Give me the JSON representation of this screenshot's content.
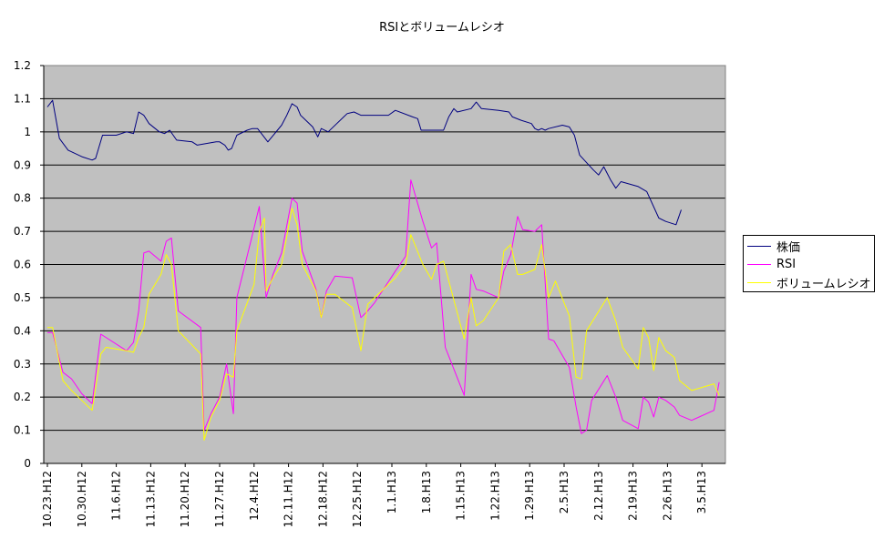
{
  "chart_data": {
    "type": "line",
    "title": "RSIとボリュームレシオ",
    "ylim": [
      0,
      1.2
    ],
    "yticks": [
      "0",
      "0.1",
      "0.2",
      "0.3",
      "0.4",
      "0.5",
      "0.6",
      "0.7",
      "0.8",
      "0.9",
      "1",
      "1.1",
      "1.2"
    ],
    "xticks": [
      "10.23.H12",
      "10.30.H12",
      "11.6.H12",
      "11.13.H12",
      "11.20.H12",
      "11.27.H12",
      "12.4.H12",
      "12.11.H12",
      "12.18.H12",
      "12.25.H12",
      "1.1.H13",
      "1.8.H13",
      "1.15.H13",
      "1.22.H13",
      "1.29.H13",
      "2.5.H13",
      "2.12.H13",
      "2.19.H13",
      "2.26.H13",
      "3.5.H13"
    ],
    "grid": true,
    "plot_background": "#c0c0c0",
    "legend_position": "right",
    "series": [
      {
        "name": "株価",
        "color": "#000080",
        "points": [
          [
            0,
            1.075
          ],
          [
            0.15,
            1.095
          ],
          [
            0.35,
            0.98
          ],
          [
            0.6,
            0.945
          ],
          [
            1.0,
            0.925
          ],
          [
            1.3,
            0.915
          ],
          [
            1.4,
            0.92
          ],
          [
            1.6,
            0.99
          ],
          [
            2.0,
            0.99
          ],
          [
            2.3,
            1.0
          ],
          [
            2.5,
            0.995
          ],
          [
            2.65,
            1.06
          ],
          [
            2.8,
            1.05
          ],
          [
            2.95,
            1.025
          ],
          [
            3.25,
            1.0
          ],
          [
            3.4,
            0.995
          ],
          [
            3.55,
            1.005
          ],
          [
            3.75,
            0.975
          ],
          [
            4.2,
            0.97
          ],
          [
            4.35,
            0.96
          ],
          [
            4.9,
            0.97
          ],
          [
            5.0,
            0.97
          ],
          [
            5.15,
            0.96
          ],
          [
            5.25,
            0.945
          ],
          [
            5.35,
            0.95
          ],
          [
            5.5,
            0.99
          ],
          [
            5.8,
            1.005
          ],
          [
            5.95,
            1.01
          ],
          [
            6.1,
            1.01
          ],
          [
            6.4,
            0.97
          ],
          [
            6.8,
            1.02
          ],
          [
            6.95,
            1.05
          ],
          [
            7.1,
            1.085
          ],
          [
            7.25,
            1.075
          ],
          [
            7.35,
            1.05
          ],
          [
            7.55,
            1.03
          ],
          [
            7.7,
            1.015
          ],
          [
            7.85,
            0.985
          ],
          [
            7.95,
            1.01
          ],
          [
            8.15,
            1.0
          ],
          [
            8.7,
            1.055
          ],
          [
            8.9,
            1.06
          ],
          [
            9.1,
            1.05
          ],
          [
            9.6,
            1.05
          ],
          [
            9.9,
            1.05
          ],
          [
            10.1,
            1.065
          ],
          [
            10.6,
            1.045
          ],
          [
            10.75,
            1.04
          ],
          [
            10.85,
            1.005
          ],
          [
            11.0,
            1.005
          ],
          [
            11.5,
            1.005
          ],
          [
            11.65,
            1.045
          ],
          [
            11.8,
            1.07
          ],
          [
            11.9,
            1.06
          ],
          [
            12.3,
            1.07
          ],
          [
            12.45,
            1.09
          ],
          [
            12.6,
            1.07
          ],
          [
            13.1,
            1.065
          ],
          [
            13.4,
            1.06
          ],
          [
            13.5,
            1.045
          ],
          [
            13.75,
            1.035
          ],
          [
            14.05,
            1.025
          ],
          [
            14.15,
            1.01
          ],
          [
            14.25,
            1.005
          ],
          [
            14.35,
            1.01
          ],
          [
            14.45,
            1.005
          ],
          [
            14.55,
            1.01
          ],
          [
            14.95,
            1.02
          ],
          [
            15.15,
            1.015
          ],
          [
            15.3,
            0.99
          ],
          [
            15.45,
            0.93
          ],
          [
            15.85,
            0.885
          ],
          [
            16.0,
            0.87
          ],
          [
            16.15,
            0.895
          ],
          [
            16.35,
            0.855
          ],
          [
            16.5,
            0.83
          ],
          [
            16.65,
            0.85
          ],
          [
            17.15,
            0.835
          ],
          [
            17.4,
            0.82
          ],
          [
            17.75,
            0.74
          ],
          [
            17.95,
            0.73
          ],
          [
            18.25,
            0.72
          ],
          [
            18.4,
            0.765
          ]
        ]
      },
      {
        "name": "RSI",
        "color": "#ff00ff",
        "points": [
          [
            0,
            0.395
          ],
          [
            0.15,
            0.395
          ],
          [
            0.45,
            0.275
          ],
          [
            0.7,
            0.255
          ],
          [
            1.0,
            0.21
          ],
          [
            1.3,
            0.18
          ],
          [
            1.55,
            0.39
          ],
          [
            2.3,
            0.34
          ],
          [
            2.5,
            0.365
          ],
          [
            2.65,
            0.46
          ],
          [
            2.8,
            0.635
          ],
          [
            2.95,
            0.64
          ],
          [
            3.3,
            0.61
          ],
          [
            3.45,
            0.67
          ],
          [
            3.6,
            0.68
          ],
          [
            3.8,
            0.46
          ],
          [
            4.45,
            0.41
          ],
          [
            4.55,
            0.1
          ],
          [
            4.75,
            0.15
          ],
          [
            5.0,
            0.2
          ],
          [
            5.2,
            0.3
          ],
          [
            5.4,
            0.15
          ],
          [
            5.5,
            0.5
          ],
          [
            6.0,
            0.71
          ],
          [
            6.15,
            0.775
          ],
          [
            6.35,
            0.5
          ],
          [
            6.55,
            0.57
          ],
          [
            6.8,
            0.635
          ],
          [
            7.1,
            0.8
          ],
          [
            7.25,
            0.785
          ],
          [
            7.4,
            0.64
          ],
          [
            7.8,
            0.525
          ],
          [
            7.95,
            0.44
          ],
          [
            8.1,
            0.52
          ],
          [
            8.35,
            0.565
          ],
          [
            8.85,
            0.56
          ],
          [
            9.1,
            0.44
          ],
          [
            9.3,
            0.46
          ],
          [
            9.5,
            0.485
          ],
          [
            10.1,
            0.58
          ],
          [
            10.4,
            0.625
          ],
          [
            10.55,
            0.855
          ],
          [
            10.9,
            0.73
          ],
          [
            11.15,
            0.65
          ],
          [
            11.3,
            0.665
          ],
          [
            11.55,
            0.35
          ],
          [
            12.1,
            0.205
          ],
          [
            12.3,
            0.57
          ],
          [
            12.45,
            0.525
          ],
          [
            12.65,
            0.52
          ],
          [
            13.1,
            0.5
          ],
          [
            13.25,
            0.58
          ],
          [
            13.45,
            0.63
          ],
          [
            13.65,
            0.745
          ],
          [
            13.8,
            0.705
          ],
          [
            14.15,
            0.7
          ],
          [
            14.35,
            0.72
          ],
          [
            14.55,
            0.375
          ],
          [
            14.7,
            0.37
          ],
          [
            15.15,
            0.29
          ],
          [
            15.35,
            0.17
          ],
          [
            15.5,
            0.09
          ],
          [
            15.65,
            0.1
          ],
          [
            15.8,
            0.19
          ],
          [
            16.25,
            0.265
          ],
          [
            16.5,
            0.2
          ],
          [
            16.7,
            0.13
          ],
          [
            17.15,
            0.105
          ],
          [
            17.3,
            0.2
          ],
          [
            17.45,
            0.185
          ],
          [
            17.6,
            0.14
          ],
          [
            17.75,
            0.2
          ],
          [
            17.95,
            0.19
          ],
          [
            18.2,
            0.17
          ],
          [
            18.35,
            0.145
          ],
          [
            18.7,
            0.13
          ],
          [
            19.35,
            0.16
          ],
          [
            19.5,
            0.245
          ]
        ]
      },
      {
        "name": "ボリュームレシオ",
        "color": "#ffff00",
        "points": [
          [
            0,
            0.41
          ],
          [
            0.15,
            0.41
          ],
          [
            0.45,
            0.25
          ],
          [
            0.7,
            0.22
          ],
          [
            1.0,
            0.19
          ],
          [
            1.3,
            0.16
          ],
          [
            1.55,
            0.33
          ],
          [
            1.7,
            0.35
          ],
          [
            2.3,
            0.34
          ],
          [
            2.5,
            0.335
          ],
          [
            2.65,
            0.38
          ],
          [
            2.8,
            0.41
          ],
          [
            2.95,
            0.51
          ],
          [
            3.3,
            0.57
          ],
          [
            3.45,
            0.63
          ],
          [
            3.6,
            0.6
          ],
          [
            3.8,
            0.4
          ],
          [
            4.45,
            0.33
          ],
          [
            4.55,
            0.07
          ],
          [
            4.75,
            0.14
          ],
          [
            5.0,
            0.19
          ],
          [
            5.2,
            0.27
          ],
          [
            5.4,
            0.26
          ],
          [
            5.5,
            0.4
          ],
          [
            6.0,
            0.54
          ],
          [
            6.15,
            0.7
          ],
          [
            6.3,
            0.74
          ],
          [
            6.35,
            0.52
          ],
          [
            6.55,
            0.56
          ],
          [
            6.8,
            0.6
          ],
          [
            7.1,
            0.77
          ],
          [
            7.25,
            0.72
          ],
          [
            7.4,
            0.6
          ],
          [
            7.8,
            0.52
          ],
          [
            7.95,
            0.44
          ],
          [
            8.1,
            0.51
          ],
          [
            8.35,
            0.51
          ],
          [
            8.85,
            0.47
          ],
          [
            9.1,
            0.34
          ],
          [
            9.3,
            0.48
          ],
          [
            9.5,
            0.5
          ],
          [
            10.1,
            0.56
          ],
          [
            10.4,
            0.6
          ],
          [
            10.55,
            0.69
          ],
          [
            10.9,
            0.6
          ],
          [
            11.15,
            0.555
          ],
          [
            11.3,
            0.6
          ],
          [
            11.5,
            0.61
          ],
          [
            12.1,
            0.375
          ],
          [
            12.3,
            0.5
          ],
          [
            12.45,
            0.415
          ],
          [
            12.65,
            0.43
          ],
          [
            13.1,
            0.5
          ],
          [
            13.25,
            0.64
          ],
          [
            13.45,
            0.66
          ],
          [
            13.65,
            0.57
          ],
          [
            13.8,
            0.57
          ],
          [
            14.15,
            0.585
          ],
          [
            14.35,
            0.66
          ],
          [
            14.55,
            0.5
          ],
          [
            14.75,
            0.55
          ],
          [
            15.15,
            0.445
          ],
          [
            15.35,
            0.26
          ],
          [
            15.5,
            0.255
          ],
          [
            15.65,
            0.4
          ],
          [
            16.25,
            0.5
          ],
          [
            16.5,
            0.43
          ],
          [
            16.7,
            0.35
          ],
          [
            17.15,
            0.285
          ],
          [
            17.3,
            0.41
          ],
          [
            17.45,
            0.38
          ],
          [
            17.6,
            0.28
          ],
          [
            17.75,
            0.38
          ],
          [
            17.95,
            0.34
          ],
          [
            18.2,
            0.32
          ],
          [
            18.35,
            0.25
          ],
          [
            18.7,
            0.22
          ],
          [
            19.35,
            0.24
          ],
          [
            19.5,
            0.205
          ]
        ]
      }
    ]
  }
}
